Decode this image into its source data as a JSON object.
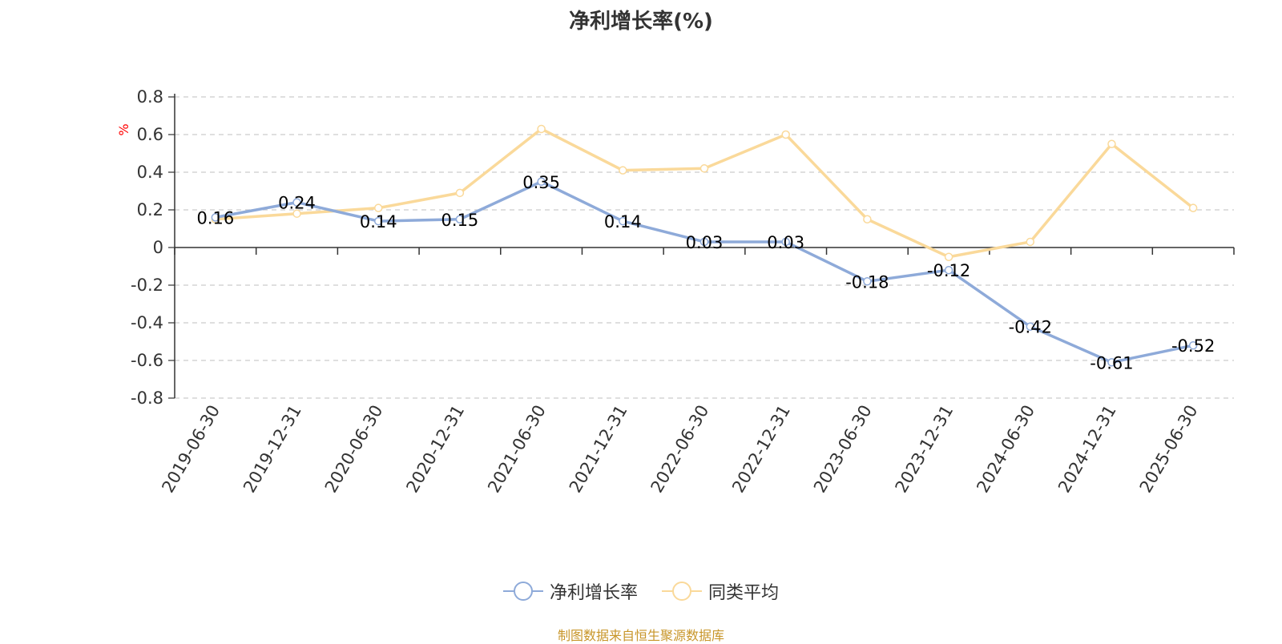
{
  "chart_data": {
    "type": "line",
    "title": "净利增长率(%)",
    "ylabel": "%",
    "xlabel": "",
    "ylim": [
      -0.8,
      0.8
    ],
    "yticks": [
      "0.8",
      "0.6",
      "0.4",
      "0.2",
      "0",
      "-0.2",
      "-0.4",
      "-0.6",
      "-0.8"
    ],
    "grid": true,
    "legend_position": "bottom",
    "categories": [
      "2019-06-30",
      "2019-12-31",
      "2020-06-30",
      "2020-12-31",
      "2021-06-30",
      "2021-12-31",
      "2022-06-30",
      "2022-12-31",
      "2023-06-30",
      "2023-12-31",
      "2024-06-30",
      "2024-12-31",
      "2025-06-30"
    ],
    "series": [
      {
        "name": "净利增长率",
        "color": "#8eaad9",
        "values": [
          0.16,
          0.24,
          0.14,
          0.15,
          0.35,
          0.14,
          0.03,
          0.03,
          -0.18,
          -0.12,
          -0.42,
          -0.61,
          -0.52
        ],
        "labels": [
          "0.16",
          "0.24",
          "0.14",
          "0.15",
          "0.35",
          "0.14",
          "0.03",
          "0.03",
          "-0.18",
          "-0.12",
          "-0.42",
          "-0.61",
          "-0.52"
        ]
      },
      {
        "name": "同类平均",
        "color": "#fad99a",
        "values": [
          0.15,
          0.18,
          0.21,
          0.29,
          0.63,
          0.41,
          0.42,
          0.6,
          0.15,
          -0.05,
          0.03,
          0.55,
          0.21
        ]
      }
    ]
  },
  "source": "制图数据来自恒生聚源数据库"
}
